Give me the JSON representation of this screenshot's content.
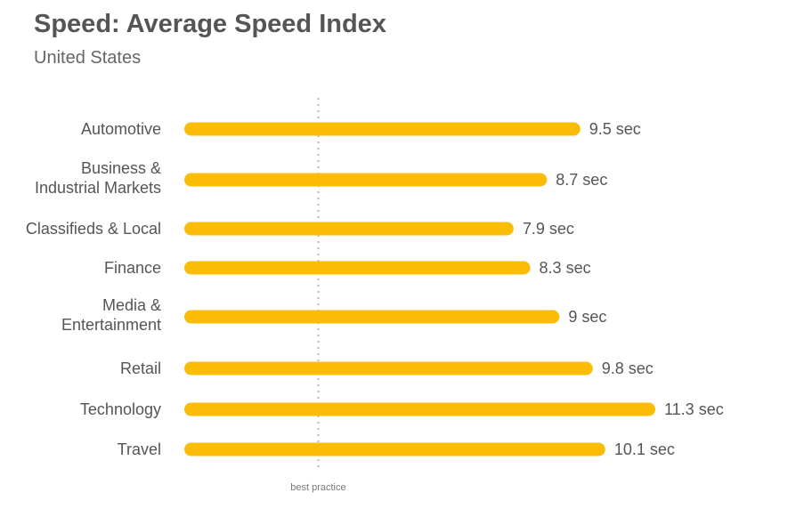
{
  "chart_data": {
    "type": "bar",
    "orientation": "horizontal",
    "title": "Speed: Average Speed Index",
    "subtitle": "United States",
    "categories": [
      [
        "Automotive"
      ],
      [
        "Business &",
        "Industrial Markets"
      ],
      [
        "Classifieds & Local"
      ],
      [
        "Finance"
      ],
      [
        "Media &",
        "Entertainment"
      ],
      [
        "Retail"
      ],
      [
        "Technology"
      ],
      [
        "Travel"
      ]
    ],
    "values": [
      9.5,
      8.7,
      7.9,
      8.3,
      9,
      9.8,
      11.3,
      10.1
    ],
    "value_labels": [
      "9.5 sec",
      "8.7 sec",
      "7.9 sec",
      "8.3 sec",
      "9 sec",
      "9.8 sec",
      "11.3 sec",
      "10.1 sec"
    ],
    "reference_line": {
      "value": 3,
      "label": "best practice"
    },
    "xlim": [
      0,
      11.3
    ],
    "grid": false,
    "colors": {
      "bar": "#FBBC05",
      "reference_line": "#BBBBBB",
      "text": "#555555"
    }
  }
}
